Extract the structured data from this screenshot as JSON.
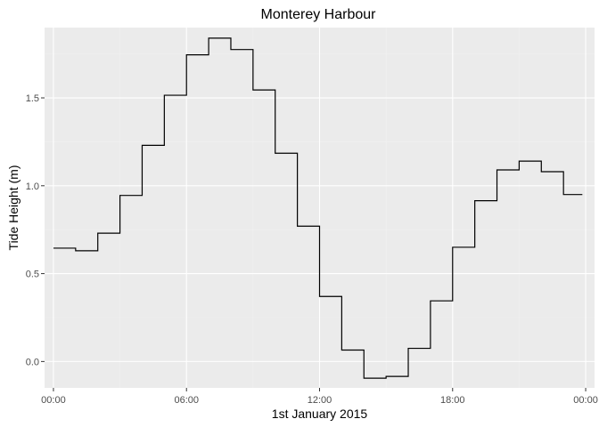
{
  "chart_data": {
    "type": "line",
    "title": "Monterey Harbour",
    "xlabel": "1st January 2015",
    "ylabel": "Tide Height (m)",
    "xlim": [
      -0.4,
      24.4
    ],
    "ylim": [
      -0.15,
      1.9
    ],
    "x_ticks": [
      {
        "value": 0,
        "label": "00:00"
      },
      {
        "value": 6,
        "label": "06:00"
      },
      {
        "value": 12,
        "label": "12:00"
      },
      {
        "value": 18,
        "label": "18:00"
      },
      {
        "value": 24,
        "label": "00:00"
      }
    ],
    "y_ticks": [
      {
        "value": 0.0,
        "label": "0.0"
      },
      {
        "value": 0.5,
        "label": "0.5"
      },
      {
        "value": 1.0,
        "label": "1.0"
      },
      {
        "value": 1.5,
        "label": "1.5"
      }
    ],
    "grid": true,
    "series": [
      {
        "step": true,
        "x": [
          0,
          0.85,
          1,
          2,
          3,
          4,
          5,
          6,
          7,
          8,
          9,
          10,
          11,
          12,
          13,
          14,
          14.85,
          15,
          16,
          17,
          18,
          19,
          20,
          21,
          22,
          23,
          23.85
        ],
        "y": [
          0.645,
          0.645,
          0.63,
          0.73,
          0.945,
          1.23,
          1.515,
          1.745,
          1.84,
          1.775,
          1.545,
          1.185,
          0.77,
          0.37,
          0.065,
          -0.095,
          -0.095,
          -0.085,
          0.075,
          0.345,
          0.65,
          0.915,
          1.09,
          1.14,
          1.08,
          0.95,
          0.95
        ]
      }
    ]
  }
}
